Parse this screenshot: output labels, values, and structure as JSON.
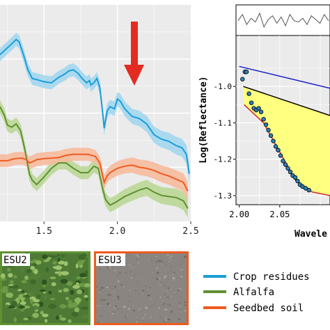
{
  "chart_data": [
    {
      "type": "line",
      "xlim": [
        1.2,
        2.5
      ],
      "ylim": [
        0,
        1
      ],
      "x_ticks": [
        "1.5",
        "2.0",
        "2.5"
      ],
      "x_tick_values": [
        1.5,
        2.0,
        2.5
      ],
      "grid": true,
      "annotation": "arrow-down",
      "annotation_x": 2.1,
      "series": [
        {
          "name": "Crop residues",
          "color": "#1a9ed8",
          "band": "#9fd6f0",
          "points": [
            [
              1.2,
              0.77
            ],
            [
              1.24,
              0.795
            ],
            [
              1.28,
              0.82
            ],
            [
              1.31,
              0.84
            ],
            [
              1.33,
              0.83
            ],
            [
              1.36,
              0.77
            ],
            [
              1.39,
              0.7
            ],
            [
              1.42,
              0.66
            ],
            [
              1.45,
              0.655
            ],
            [
              1.5,
              0.645
            ],
            [
              1.55,
              0.64
            ],
            [
              1.6,
              0.665
            ],
            [
              1.64,
              0.68
            ],
            [
              1.67,
              0.695
            ],
            [
              1.7,
              0.7
            ],
            [
              1.73,
              0.685
            ],
            [
              1.76,
              0.66
            ],
            [
              1.79,
              0.64
            ],
            [
              1.81,
              0.65
            ],
            [
              1.82,
              0.63
            ],
            [
              1.84,
              0.64
            ],
            [
              1.86,
              0.66
            ],
            [
              1.88,
              0.62
            ],
            [
              1.9,
              0.5
            ],
            [
              1.91,
              0.43
            ],
            [
              1.93,
              0.51
            ],
            [
              1.95,
              0.53
            ],
            [
              1.98,
              0.52
            ],
            [
              2.0,
              0.565
            ],
            [
              2.02,
              0.555
            ],
            [
              2.05,
              0.52
            ],
            [
              2.1,
              0.485
            ],
            [
              2.15,
              0.475
            ],
            [
              2.2,
              0.45
            ],
            [
              2.25,
              0.4
            ],
            [
              2.3,
              0.38
            ],
            [
              2.35,
              0.37
            ],
            [
              2.4,
              0.35
            ],
            [
              2.44,
              0.34
            ],
            [
              2.47,
              0.31
            ],
            [
              2.49,
              0.22
            ]
          ]
        },
        {
          "name": "Alfalfa",
          "color": "#5f9131",
          "band": "#b8d690",
          "points": [
            [
              1.2,
              0.53
            ],
            [
              1.23,
              0.49
            ],
            [
              1.25,
              0.445
            ],
            [
              1.28,
              0.435
            ],
            [
              1.31,
              0.45
            ],
            [
              1.34,
              0.42
            ],
            [
              1.37,
              0.33
            ],
            [
              1.4,
              0.22
            ],
            [
              1.42,
              0.19
            ],
            [
              1.45,
              0.17
            ],
            [
              1.5,
              0.205
            ],
            [
              1.55,
              0.245
            ],
            [
              1.6,
              0.27
            ],
            [
              1.65,
              0.27
            ],
            [
              1.7,
              0.245
            ],
            [
              1.75,
              0.225
            ],
            [
              1.8,
              0.225
            ],
            [
              1.84,
              0.255
            ],
            [
              1.87,
              0.245
            ],
            [
              1.9,
              0.15
            ],
            [
              1.92,
              0.1
            ],
            [
              1.95,
              0.075
            ],
            [
              1.98,
              0.085
            ],
            [
              2.05,
              0.115
            ],
            [
              2.1,
              0.13
            ],
            [
              2.15,
              0.145
            ],
            [
              2.2,
              0.155
            ],
            [
              2.25,
              0.135
            ],
            [
              2.3,
              0.12
            ],
            [
              2.35,
              0.115
            ],
            [
              2.4,
              0.11
            ],
            [
              2.45,
              0.095
            ],
            [
              2.48,
              0.06
            ]
          ]
        },
        {
          "name": "Seedbed soil",
          "color": "#ef5a1f",
          "band": "#f8b899",
          "points": [
            [
              1.2,
              0.28
            ],
            [
              1.25,
              0.28
            ],
            [
              1.3,
              0.29
            ],
            [
              1.35,
              0.292
            ],
            [
              1.38,
              0.285
            ],
            [
              1.4,
              0.27
            ],
            [
              1.42,
              0.275
            ],
            [
              1.45,
              0.285
            ],
            [
              1.5,
              0.29
            ],
            [
              1.55,
              0.292
            ],
            [
              1.6,
              0.295
            ],
            [
              1.65,
              0.305
            ],
            [
              1.7,
              0.31
            ],
            [
              1.75,
              0.31
            ],
            [
              1.8,
              0.31
            ],
            [
              1.85,
              0.3
            ],
            [
              1.88,
              0.27
            ],
            [
              1.9,
              0.21
            ],
            [
              1.91,
              0.18
            ],
            [
              1.93,
              0.21
            ],
            [
              1.95,
              0.225
            ],
            [
              2.0,
              0.245
            ],
            [
              2.05,
              0.255
            ],
            [
              2.1,
              0.26
            ],
            [
              2.15,
              0.25
            ],
            [
              2.2,
              0.245
            ],
            [
              2.25,
              0.235
            ],
            [
              2.3,
              0.22
            ],
            [
              2.35,
              0.21
            ],
            [
              2.4,
              0.195
            ],
            [
              2.45,
              0.18
            ],
            [
              2.48,
              0.14
            ]
          ]
        }
      ]
    },
    {
      "type": "scatter",
      "xlim": [
        1.996,
        2.112
      ],
      "ylim": [
        -1.325,
        -0.86
      ],
      "ylabel": "Log(Reflectance)",
      "xlabel": "Wavele",
      "x_ticks": [
        "2.00",
        "2.05"
      ],
      "x_tick_values": [
        2.0,
        2.05
      ],
      "y_ticks": [
        "-1.0",
        "-1.1",
        "-1.2",
        "-1.3"
      ],
      "y_tick_values": [
        -1.0,
        -1.1,
        -1.2,
        -1.3
      ],
      "grid": true,
      "point_color": "#2e7fb5",
      "points": [
        [
          2.004,
          -0.98
        ],
        [
          2.007,
          -0.96
        ],
        [
          2.009,
          -0.96
        ],
        [
          2.012,
          -1.02
        ],
        [
          2.015,
          -1.045
        ],
        [
          2.018,
          -1.06
        ],
        [
          2.021,
          -1.065
        ],
        [
          2.024,
          -1.06
        ],
        [
          2.027,
          -1.07
        ],
        [
          2.03,
          -1.09
        ],
        [
          2.033,
          -1.105
        ],
        [
          2.036,
          -1.12
        ],
        [
          2.039,
          -1.135
        ],
        [
          2.042,
          -1.15
        ],
        [
          2.045,
          -1.165
        ],
        [
          2.048,
          -1.175
        ],
        [
          2.051,
          -1.19
        ],
        [
          2.054,
          -1.205
        ],
        [
          2.057,
          -1.215
        ],
        [
          2.06,
          -1.225
        ],
        [
          2.063,
          -1.235
        ],
        [
          2.066,
          -1.245
        ],
        [
          2.069,
          -1.25
        ],
        [
          2.072,
          -1.26
        ],
        [
          2.075,
          -1.27
        ],
        [
          2.078,
          -1.275
        ],
        [
          2.082,
          -1.28
        ],
        [
          2.086,
          -1.285
        ]
      ],
      "hull_line": [
        [
          2.005,
          -1.0
        ],
        [
          2.112,
          -1.08
        ]
      ],
      "fit_line": [
        [
          2.006,
          -1.05
        ],
        [
          2.03,
          -1.1
        ],
        [
          2.055,
          -1.2
        ],
        [
          2.07,
          -1.26
        ],
        [
          2.09,
          -1.29
        ],
        [
          2.112,
          -1.3
        ]
      ],
      "blue_line": [
        [
          2.0,
          -0.945
        ],
        [
          2.112,
          -1.005
        ]
      ],
      "fill_color": "#ffff80",
      "top_panel_series": [
        0.55,
        0.3,
        0.7,
        0.45,
        0.6,
        0.25,
        0.8,
        0.5,
        0.35,
        0.65,
        0.4,
        0.75,
        0.3,
        0.55,
        0.6,
        0.45,
        0.7,
        0.35,
        0.5,
        0.65,
        0.3,
        0.55
      ]
    }
  ],
  "photos": [
    {
      "label": "ESU2",
      "frame_color": "#5f9131"
    },
    {
      "label": "ESU3",
      "frame_color": "#ef5a1f"
    }
  ],
  "legend": [
    {
      "label": "Crop residues",
      "color": "#1a9ed8"
    },
    {
      "label": "Alfalfa",
      "color": "#5f9131"
    },
    {
      "label": "Seedbed soil",
      "color": "#ef5a1f"
    }
  ]
}
